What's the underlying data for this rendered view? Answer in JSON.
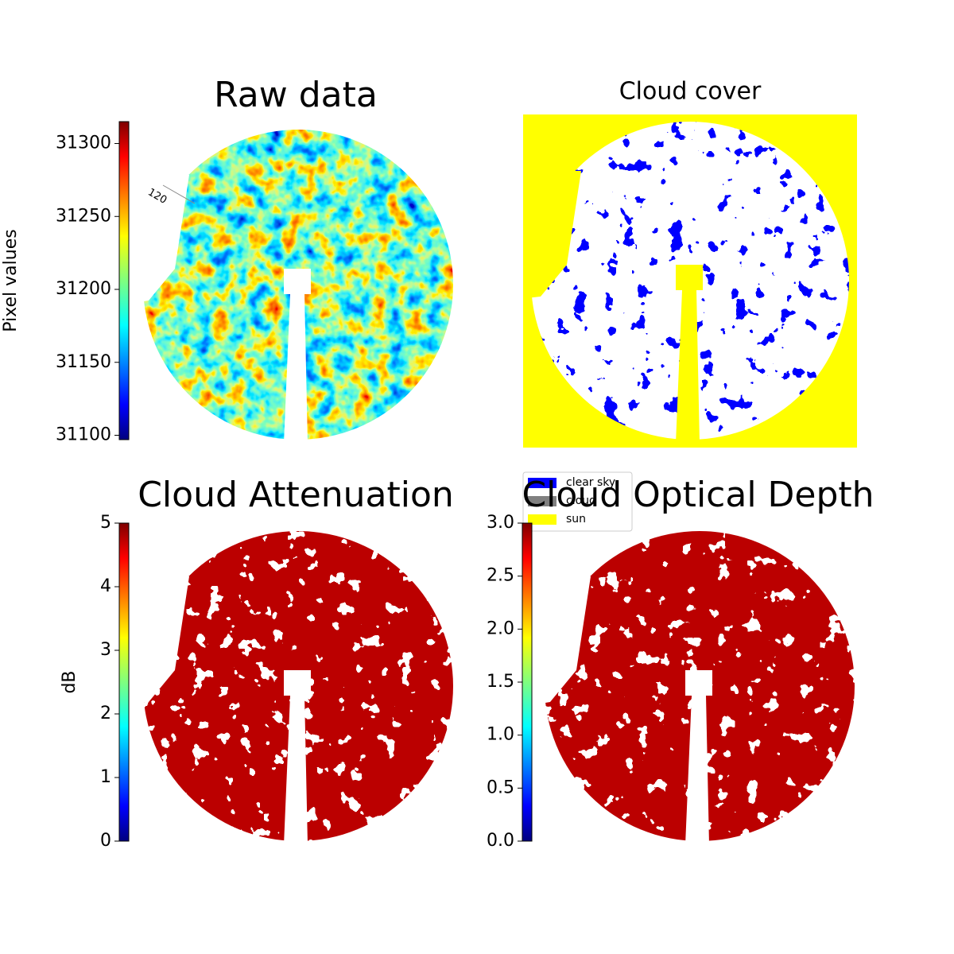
{
  "chart_data": [
    {
      "type": "image",
      "title": "Raw data",
      "colormap": "jet",
      "ylabel": "Pixel values",
      "ylim": [
        31097,
        31315
      ],
      "yticks": [
        31100,
        31150,
        31200,
        31250,
        31300
      ],
      "annotations": [
        "120"
      ]
    },
    {
      "type": "image",
      "title": "Cloud cover",
      "colormap": "categorical",
      "legend_entries": [
        {
          "name": "clear sky",
          "color": "#0000ff"
        },
        {
          "name": "cloud",
          "color": "#808080"
        },
        {
          "name": "sun",
          "color": "#ffff00"
        }
      ]
    },
    {
      "type": "image",
      "title": "Cloud Attenuation",
      "colormap": "jet",
      "ylabel": "dB",
      "ylim": [
        0,
        5
      ],
      "yticks": [
        0,
        1,
        2,
        3,
        4,
        5
      ]
    },
    {
      "type": "image",
      "title": "Cloud Optical Depth",
      "colormap": "jet",
      "ylim": [
        0,
        3
      ],
      "yticks": [
        {
          "value": 0,
          "label": "0.0"
        },
        0.5,
        {
          "value": 1,
          "label": "1.0"
        },
        1.5,
        {
          "value": 2,
          "label": "2.0"
        },
        2.5,
        {
          "value": 3,
          "label": "3.0"
        }
      ]
    }
  ]
}
